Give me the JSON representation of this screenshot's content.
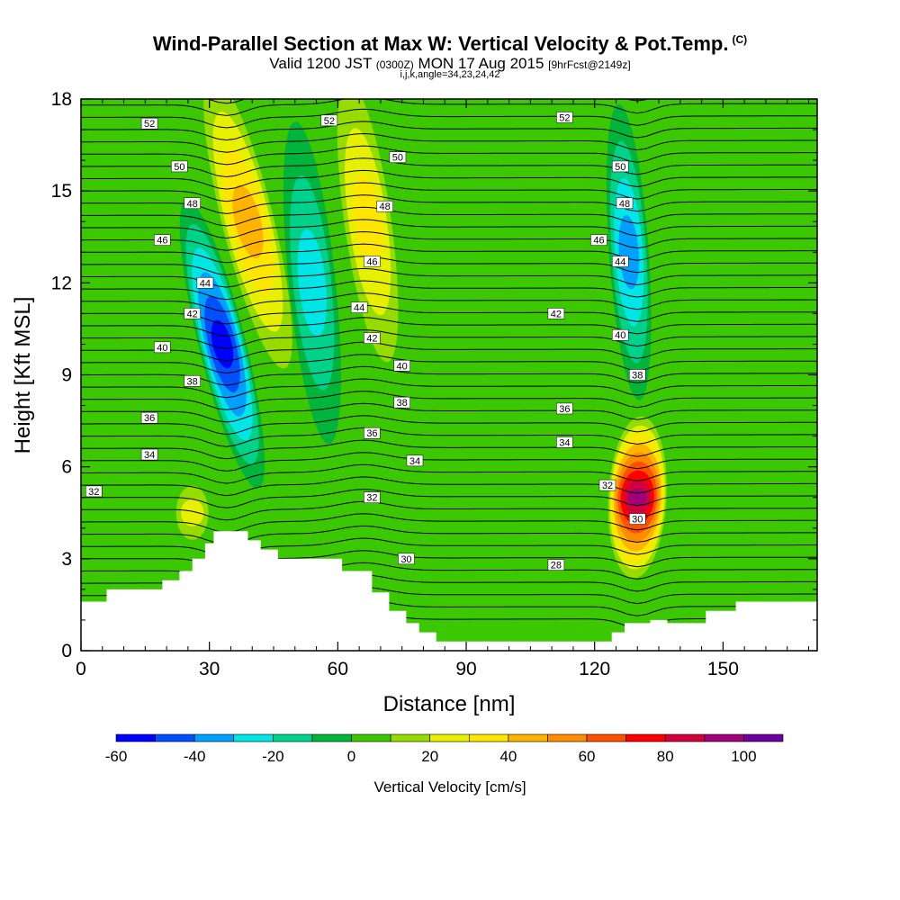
{
  "header": {
    "title": "Wind-Parallel Section at Max W: Vertical Velocity & Pot.Temp.",
    "title_mark": "(C)",
    "subtitle_a": "Valid 1200 JST",
    "subtitle_b": "(0300Z)",
    "subtitle_c": "MON 17 Aug 2015",
    "subtitle_d": "[9hrFcst@2149z]",
    "line3": "i,j,k,angle=34,23,24,42"
  },
  "chart_data": {
    "type": "heatmap",
    "xlabel": "Distance [nm]",
    "ylabel": "Height [Kft MSL]",
    "xlim": [
      0,
      172
    ],
    "ylim": [
      0,
      18
    ],
    "x_ticks": [
      "0",
      "30",
      "60",
      "90",
      "120",
      "150"
    ],
    "y_ticks": [
      "0",
      "3",
      "6",
      "9",
      "12",
      "15",
      "18"
    ],
    "colorbar": {
      "label": "Vertical Velocity [cm/s]",
      "tick_labels": [
        "-60",
        "-40",
        "-20",
        "0",
        "20",
        "40",
        "60",
        "80",
        "100"
      ],
      "levels": [
        -60,
        -50,
        -40,
        -30,
        -20,
        -10,
        0,
        10,
        20,
        30,
        40,
        50,
        60,
        70,
        80,
        90,
        100,
        110
      ],
      "colors": [
        "#0000ff",
        "#0050ff",
        "#00a0ff",
        "#00e6e6",
        "#00d28c",
        "#00b43c",
        "#3cc800",
        "#96dc00",
        "#e6f000",
        "#ffe600",
        "#ffb400",
        "#ff8c00",
        "#ff5000",
        "#ff0000",
        "#d2003c",
        "#a00078",
        "#6e00a0"
      ]
    },
    "features": [
      {
        "name": "downdraft",
        "x": 33,
        "height": 10,
        "value": -60
      },
      {
        "name": "updraft",
        "x": 39,
        "height": 14,
        "value": 50
      },
      {
        "name": "downdraft",
        "x": 54,
        "height": 12,
        "value": -30
      },
      {
        "name": "updraft",
        "x": 67,
        "height": 14,
        "value": 40
      },
      {
        "name": "downdraft",
        "x": 128,
        "height": 13,
        "value": -40
      },
      {
        "name": "updraft",
        "x": 130,
        "height": 5,
        "value": 100
      },
      {
        "name": "updraft",
        "x": 26,
        "height": 4.5,
        "value": 30
      }
    ],
    "terrain_kft": [
      [
        0,
        1.6
      ],
      [
        6,
        1.6
      ],
      [
        6,
        2.0
      ],
      [
        19,
        2.0
      ],
      [
        19,
        2.3
      ],
      [
        23,
        2.3
      ],
      [
        23,
        2.6
      ],
      [
        26,
        2.6
      ],
      [
        26,
        3.0
      ],
      [
        29,
        3.0
      ],
      [
        29,
        3.5
      ],
      [
        31,
        3.5
      ],
      [
        31,
        3.9
      ],
      [
        39,
        3.9
      ],
      [
        39,
        3.6
      ],
      [
        42,
        3.6
      ],
      [
        42,
        3.3
      ],
      [
        46,
        3.3
      ],
      [
        46,
        3.0
      ],
      [
        61,
        3.0
      ],
      [
        61,
        2.6
      ],
      [
        68,
        2.6
      ],
      [
        68,
        1.9
      ],
      [
        72,
        1.9
      ],
      [
        72,
        1.3
      ],
      [
        76,
        1.3
      ],
      [
        76,
        0.9
      ],
      [
        79,
        0.9
      ],
      [
        79,
        0.6
      ],
      [
        83,
        0.6
      ],
      [
        83,
        0.3
      ],
      [
        124,
        0.3
      ],
      [
        124,
        0.6
      ],
      [
        127,
        0.6
      ],
      [
        127,
        0.9
      ],
      [
        133,
        0.9
      ],
      [
        133,
        1.0
      ],
      [
        137,
        1.0
      ],
      [
        137,
        0.9
      ],
      [
        146,
        0.9
      ],
      [
        146,
        1.3
      ],
      [
        153,
        1.3
      ],
      [
        153,
        1.6
      ],
      [
        172,
        1.6
      ]
    ],
    "contour_labels": [
      {
        "text": "52",
        "x": 16,
        "height": 17.2
      },
      {
        "text": "52",
        "x": 58,
        "height": 17.3
      },
      {
        "text": "52",
        "x": 113,
        "height": 17.4
      },
      {
        "text": "50",
        "x": 23,
        "height": 15.8
      },
      {
        "text": "50",
        "x": 74,
        "height": 16.1
      },
      {
        "text": "50",
        "x": 126,
        "height": 15.8
      },
      {
        "text": "48",
        "x": 26,
        "height": 14.6
      },
      {
        "text": "48",
        "x": 71,
        "height": 14.5
      },
      {
        "text": "48",
        "x": 127,
        "height": 14.6
      },
      {
        "text": "46",
        "x": 19,
        "height": 13.4
      },
      {
        "text": "46",
        "x": 68,
        "height": 12.7
      },
      {
        "text": "46",
        "x": 121,
        "height": 13.4
      },
      {
        "text": "44",
        "x": 29,
        "height": 12.0
      },
      {
        "text": "44",
        "x": 65,
        "height": 11.2
      },
      {
        "text": "44",
        "x": 126,
        "height": 12.7
      },
      {
        "text": "42",
        "x": 26,
        "height": 11.0
      },
      {
        "text": "42",
        "x": 68,
        "height": 10.2
      },
      {
        "text": "42",
        "x": 111,
        "height": 11.0
      },
      {
        "text": "40",
        "x": 19,
        "height": 9.9
      },
      {
        "text": "40",
        "x": 75,
        "height": 9.3
      },
      {
        "text": "40",
        "x": 126,
        "height": 10.3
      },
      {
        "text": "38",
        "x": 26,
        "height": 8.8
      },
      {
        "text": "38",
        "x": 75,
        "height": 8.1
      },
      {
        "text": "38",
        "x": 130,
        "height": 9.0
      },
      {
        "text": "36",
        "x": 16,
        "height": 7.6
      },
      {
        "text": "36",
        "x": 68,
        "height": 7.1
      },
      {
        "text": "36",
        "x": 113,
        "height": 7.9
      },
      {
        "text": "34",
        "x": 16,
        "height": 6.4
      },
      {
        "text": "34",
        "x": 78,
        "height": 6.2
      },
      {
        "text": "34",
        "x": 113,
        "height": 6.8
      },
      {
        "text": "32",
        "x": 3,
        "height": 5.2
      },
      {
        "text": "32",
        "x": 68,
        "height": 5.0
      },
      {
        "text": "32",
        "x": 123,
        "height": 5.4
      },
      {
        "text": "30",
        "x": 76,
        "height": 3.0
      },
      {
        "text": "30",
        "x": 130,
        "height": 4.3
      },
      {
        "text": "28",
        "x": 111,
        "height": 2.8
      }
    ]
  }
}
